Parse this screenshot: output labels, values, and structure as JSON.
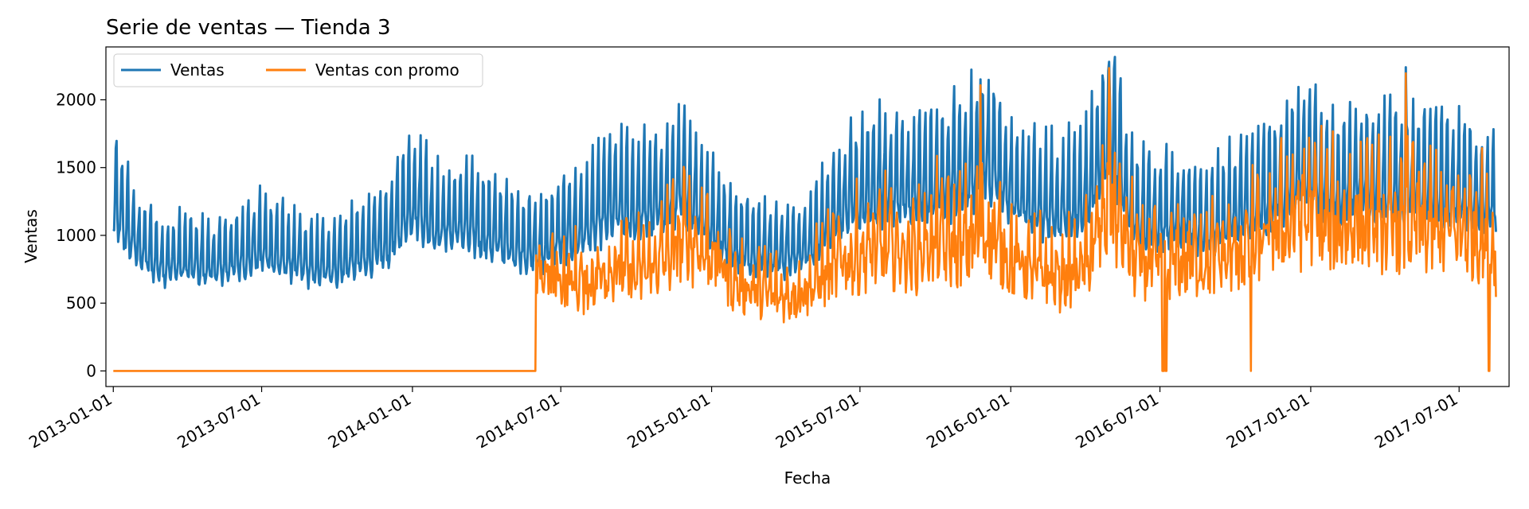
{
  "chart_data": {
    "type": "line",
    "title": "Serie de ventas — Tienda 3",
    "xlabel": "Fecha",
    "ylabel": "Ventas",
    "x_range": [
      "2012-12-23",
      "2017-08-31"
    ],
    "ylim": [
      -115,
      2390
    ],
    "yticks": [
      0,
      500,
      1000,
      1500,
      2000
    ],
    "xticks": [
      "2013-01-01",
      "2013-07-01",
      "2014-01-01",
      "2014-07-01",
      "2015-01-01",
      "2015-07-01",
      "2016-01-01",
      "2016-07-01",
      "2017-01-01",
      "2017-07-01"
    ],
    "grid": false,
    "legend": "top-left",
    "series": [
      {
        "name": "Ventas",
        "color": "#1f77b4",
        "x": [
          "2013-01-01",
          "2013-02-01",
          "2013-03-01",
          "2013-04-01",
          "2013-05-01",
          "2013-06-01",
          "2013-07-01",
          "2013-08-01",
          "2013-09-01",
          "2013-10-01",
          "2013-11-01",
          "2013-12-01",
          "2014-01-01",
          "2014-02-01",
          "2014-03-01",
          "2014-04-01",
          "2014-05-01",
          "2014-06-01",
          "2014-07-01",
          "2014-08-01",
          "2014-09-01",
          "2014-10-01",
          "2014-11-01",
          "2014-12-01",
          "2015-01-01",
          "2015-02-01",
          "2015-03-01",
          "2015-04-01",
          "2015-05-01",
          "2015-06-01",
          "2015-07-01",
          "2015-08-01",
          "2015-09-01",
          "2015-10-01",
          "2015-11-01",
          "2015-12-01",
          "2016-01-01",
          "2016-02-01",
          "2016-03-01",
          "2016-04-01",
          "2016-05-01",
          "2016-06-01",
          "2016-07-01",
          "2016-08-01",
          "2016-09-01",
          "2016-10-01",
          "2016-11-01",
          "2016-12-01",
          "2017-01-01",
          "2017-02-01",
          "2017-03-01",
          "2017-04-01",
          "2017-05-01",
          "2017-06-01",
          "2017-07-01",
          "2017-08-01",
          "2017-08-15"
        ],
        "values": [
          1200,
          900,
          780,
          800,
          760,
          820,
          900,
          830,
          760,
          780,
          850,
          930,
          1250,
          1050,
          1080,
          1010,
          940,
          880,
          980,
          1050,
          1200,
          1180,
          1230,
          1330,
          1080,
          900,
          880,
          850,
          900,
          1180,
          1250,
          1330,
          1300,
          1350,
          1400,
          1550,
          1300,
          1200,
          1180,
          1250,
          1700,
          1120,
          1100,
          1080,
          1050,
          1150,
          1200,
          1350,
          1450,
          1300,
          1400,
          1350,
          1350,
          1320,
          1300,
          1250,
          1200
        ]
      },
      {
        "name": "Ventas con promo",
        "color": "#ff7f0e",
        "x": [
          "2013-01-01",
          "2014-05-31",
          "2014-06-01",
          "2014-07-01",
          "2014-08-01",
          "2014-09-01",
          "2014-10-01",
          "2014-11-01",
          "2014-12-01",
          "2015-01-01",
          "2015-02-01",
          "2015-03-01",
          "2015-04-01",
          "2015-05-01",
          "2015-06-01",
          "2015-07-01",
          "2015-08-01",
          "2015-09-01",
          "2015-10-01",
          "2015-11-01",
          "2015-12-01",
          "2016-01-01",
          "2016-02-01",
          "2016-03-01",
          "2016-04-01",
          "2016-05-01",
          "2016-06-01",
          "2016-07-01",
          "2016-08-01",
          "2016-09-01",
          "2016-10-01",
          "2016-11-01",
          "2016-12-01",
          "2017-01-01",
          "2017-02-01",
          "2017-03-01",
          "2017-04-01",
          "2017-05-01",
          "2017-06-01",
          "2017-07-01",
          "2017-08-01",
          "2017-08-15"
        ],
        "values": [
          0,
          0,
          800,
          750,
          700,
          850,
          780,
          900,
          1100,
          950,
          700,
          650,
          600,
          680,
          850,
          950,
          1000,
          950,
          1050,
          1000,
          1150,
          900,
          800,
          750,
          850,
          1350,
          900,
          850,
          900,
          900,
          950,
          1050,
          1200,
          1300,
          1150,
          1250,
          1150,
          1200,
          1150,
          1150,
          1100,
          950
        ]
      }
    ]
  }
}
